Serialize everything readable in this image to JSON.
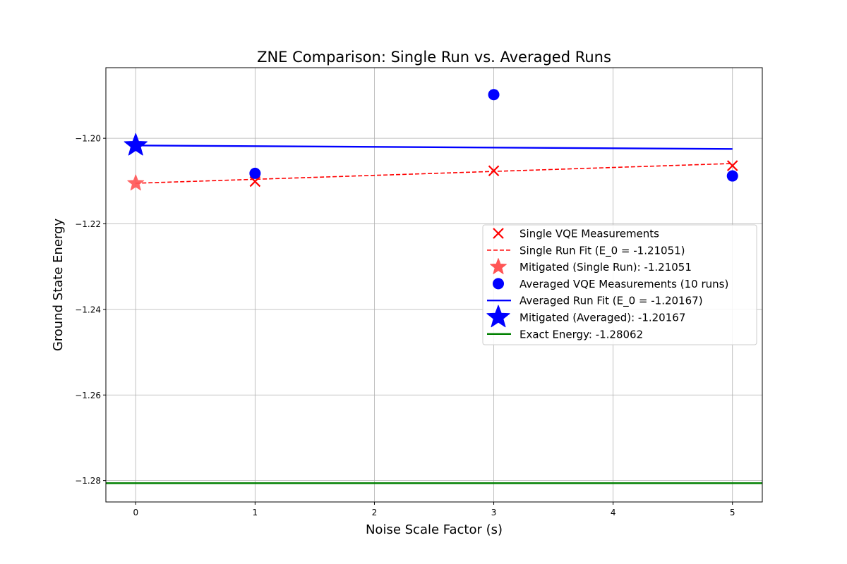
{
  "chart_data": {
    "type": "line",
    "title": "ZNE Comparison: Single Run vs. Averaged Runs",
    "xlabel": "Noise Scale Factor (s)",
    "ylabel": "Ground State Energy",
    "xlim": [
      -0.25,
      5.25
    ],
    "ylim": [
      -1.285,
      -1.1835
    ],
    "xticks": [
      0,
      1,
      2,
      3,
      4,
      5
    ],
    "xtick_labels": [
      "0",
      "1",
      "2",
      "3",
      "4",
      "5"
    ],
    "yticks": [
      -1.28,
      -1.26,
      -1.24,
      -1.22,
      -1.2
    ],
    "ytick_labels": [
      "−1.28",
      "−1.26",
      "−1.24",
      "−1.22",
      "−1.20"
    ],
    "grid": true,
    "legend_position": "center-right",
    "series": [
      {
        "name": "Single VQE Measurements",
        "kind": "scatter",
        "marker": "x",
        "color": "#ff0000",
        "x": [
          1,
          3,
          5
        ],
        "y": [
          -1.2101,
          -1.2076,
          -1.2064
        ]
      },
      {
        "name": "Single Run Fit (E_0 = -1.21051)",
        "kind": "line",
        "style": "dashed",
        "color": "#ff0000",
        "x": [
          0,
          5
        ],
        "y": [
          -1.21051,
          -1.2059
        ]
      },
      {
        "name": "Mitigated (Single Run): -1.21051",
        "kind": "scatter",
        "marker": "star",
        "color": "#ff5555",
        "x": [
          0
        ],
        "y": [
          -1.21051
        ]
      },
      {
        "name": "Averaged VQE Measurements (10 runs)",
        "kind": "scatter",
        "marker": "circle",
        "color": "#0000ff",
        "x": [
          1,
          3,
          5
        ],
        "y": [
          -1.2082,
          -1.1898,
          -1.2088
        ]
      },
      {
        "name": "Averaged Run Fit (E_0 = -1.20167)",
        "kind": "line",
        "style": "solid",
        "color": "#0000ff",
        "x": [
          0,
          5
        ],
        "y": [
          -1.20167,
          -1.2025
        ]
      },
      {
        "name": "Mitigated (Averaged): -1.20167",
        "kind": "scatter",
        "marker": "star",
        "color": "#0000ff",
        "x": [
          0
        ],
        "y": [
          -1.20167
        ]
      },
      {
        "name": "Exact Energy: -1.28062",
        "kind": "hline",
        "color": "#008000",
        "y": -1.28062
      }
    ]
  }
}
